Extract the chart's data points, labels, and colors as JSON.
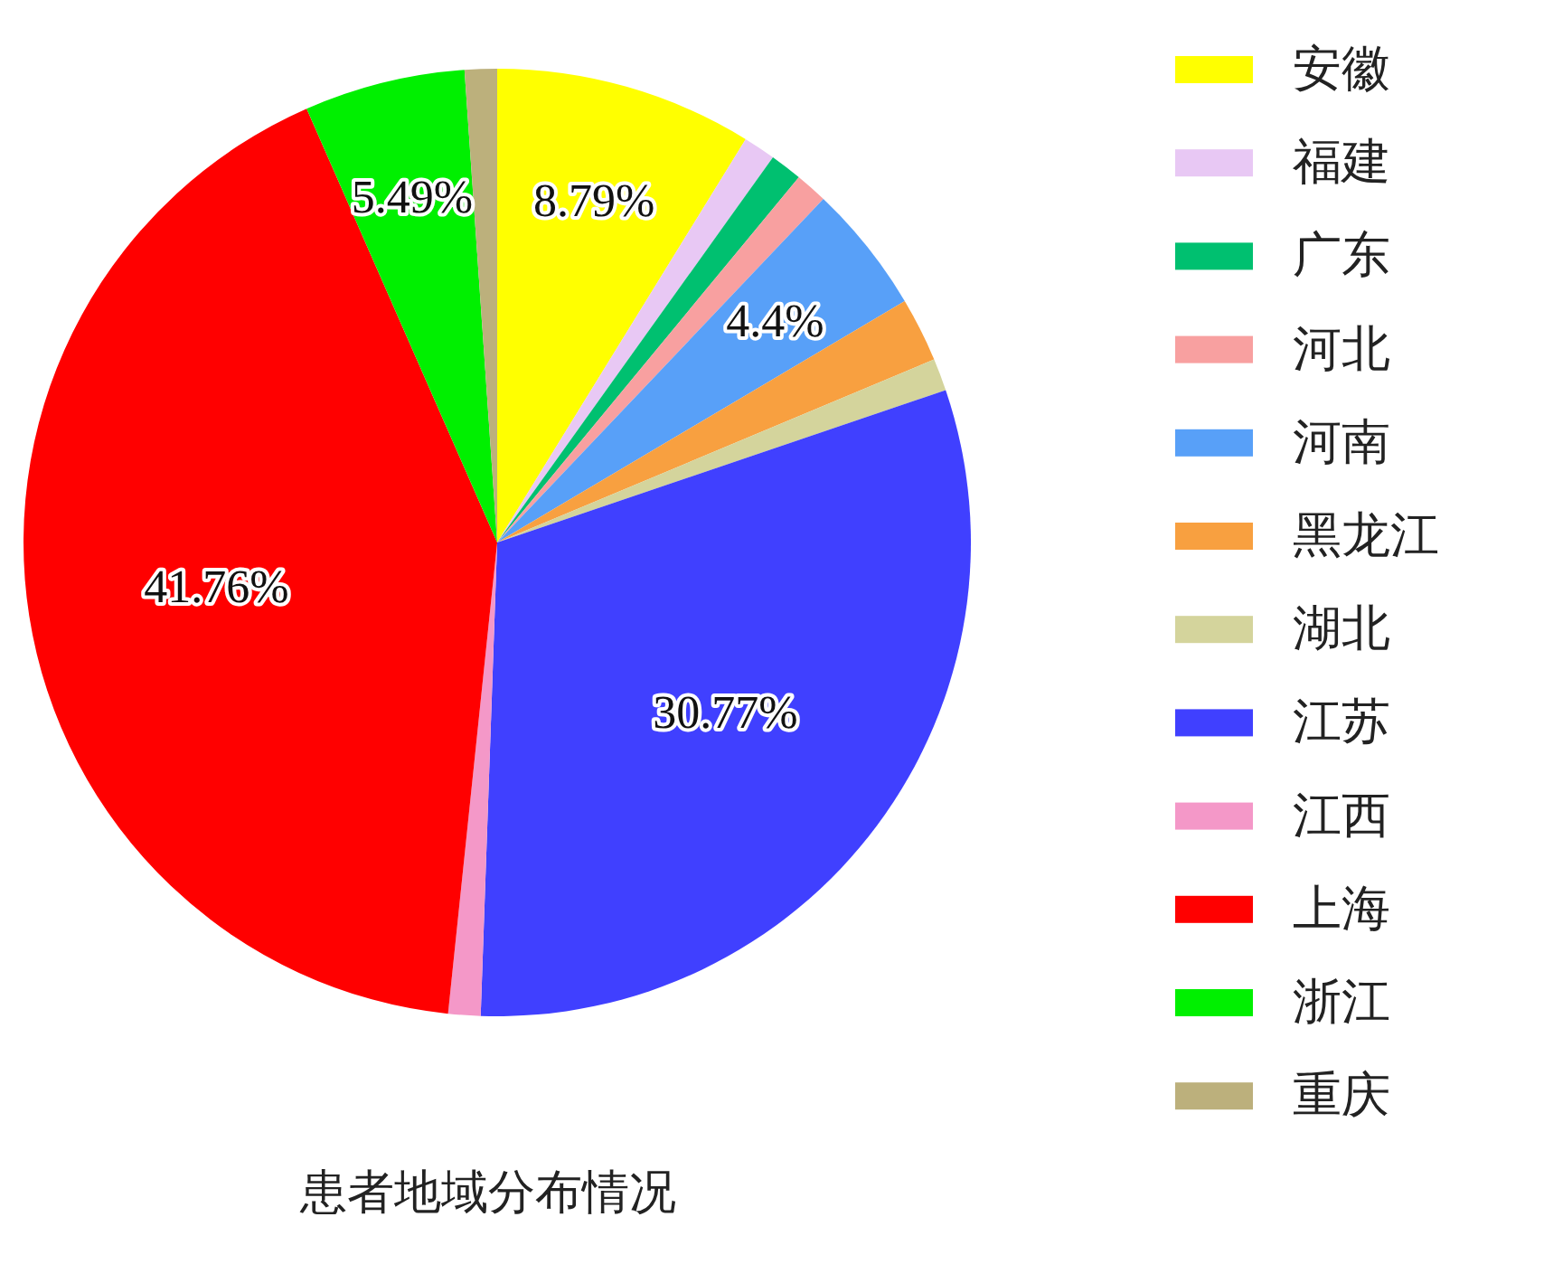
{
  "chart_data": {
    "type": "pie",
    "title": "患者地域分布情况",
    "categories": [
      "安徽",
      "福建",
      "广东",
      "河北",
      "河南",
      "黑龙江",
      "湖北",
      "江苏",
      "江西",
      "上海",
      "浙江",
      "重庆"
    ],
    "values": [
      8.79,
      1.1,
      1.1,
      1.1,
      4.4,
      2.2,
      1.1,
      30.77,
      1.1,
      41.76,
      5.49,
      1.1
    ],
    "colors": [
      "#ffff00",
      "#e8c8f4",
      "#00c070",
      "#f8a0a0",
      "#58a0f8",
      "#f8a040",
      "#d4d49c",
      "#4040ff",
      "#f498c8",
      "#ff0000",
      "#00f000",
      "#bcb07c"
    ],
    "value_labels": [
      "8.79%",
      null,
      null,
      null,
      "4.4%",
      null,
      null,
      "30.77%",
      null,
      "41.76%",
      "5.49%",
      null
    ],
    "legend": "right"
  }
}
